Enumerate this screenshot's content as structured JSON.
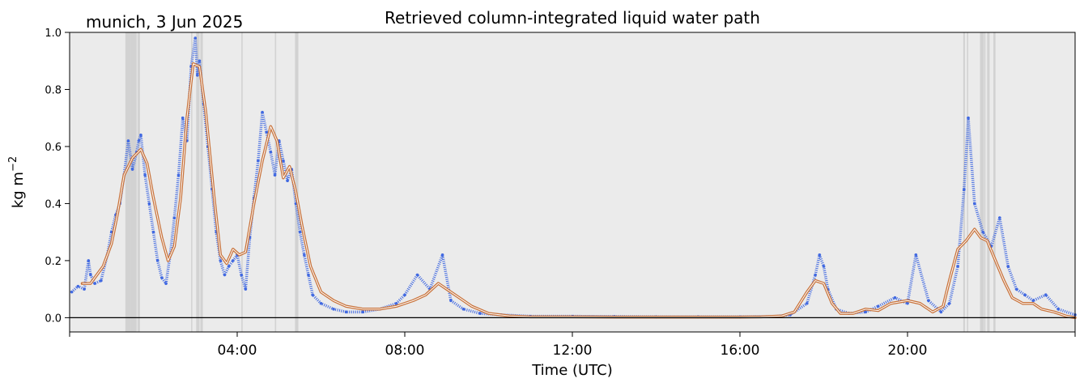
{
  "chart_data": {
    "type": "scatter",
    "title": "Retrieved column-integrated liquid water path",
    "location_label": "munich, 3 Jun 2025",
    "xlabel": "Time (UTC)",
    "ylabel": "kg m⁻²",
    "ylabel_base": "kg m",
    "ylabel_exp": "−2",
    "xlim": [
      0,
      24
    ],
    "ylim": [
      -0.05,
      1.0
    ],
    "xticks": [
      {
        "value": 4,
        "label": "04:00"
      },
      {
        "value": 8,
        "label": "08:00"
      },
      {
        "value": 12,
        "label": "12:00"
      },
      {
        "value": 16,
        "label": "16:00"
      },
      {
        "value": 20,
        "label": "20:00"
      }
    ],
    "yticks": [
      {
        "value": 0.0,
        "label": "0.0"
      },
      {
        "value": 0.2,
        "label": "0.2"
      },
      {
        "value": 0.4,
        "label": "0.4"
      },
      {
        "value": 0.6,
        "label": "0.6"
      },
      {
        "value": 0.8,
        "label": "0.8"
      },
      {
        "value": 1.0,
        "label": "1.0"
      }
    ],
    "colors": {
      "background": "#ebebeb",
      "raw": "#4169e1",
      "smoothed_outline": "#c8723a",
      "smoothed_center": "#ffffff",
      "flag_band": "#d2d2d2",
      "zero_line": "#000000"
    },
    "flag_bands": [
      [
        1.33,
        1.46
      ],
      [
        1.46,
        1.6
      ],
      [
        1.62,
        1.68
      ],
      [
        2.9,
        2.93
      ],
      [
        3.02,
        3.1
      ],
      [
        3.12,
        3.18
      ],
      [
        4.1,
        4.13
      ],
      [
        4.9,
        4.93
      ],
      [
        5.38,
        5.46
      ],
      [
        21.33,
        21.37
      ],
      [
        21.42,
        21.44
      ],
      [
        21.73,
        21.82
      ],
      [
        21.83,
        21.86
      ],
      [
        21.9,
        21.96
      ],
      [
        22.05,
        22.1
      ]
    ],
    "series": [
      {
        "kind": "smoothed",
        "x": [
          0.3,
          0.5,
          0.8,
          1.0,
          1.15,
          1.3,
          1.5,
          1.7,
          1.85,
          2.0,
          2.2,
          2.35,
          2.5,
          2.65,
          2.8,
          2.95,
          3.1,
          3.25,
          3.45,
          3.6,
          3.75,
          3.9,
          4.05,
          4.2,
          4.4,
          4.6,
          4.8,
          4.95,
          5.1,
          5.25,
          5.4,
          5.55,
          5.75,
          6.0,
          6.3,
          6.6,
          7.0,
          7.4,
          7.8,
          8.2,
          8.5,
          8.8,
          9.0,
          9.3,
          9.6,
          10.0,
          10.5,
          11.0,
          12.0,
          13.0,
          14.0,
          15.0,
          16.0,
          16.5,
          17.0,
          17.3,
          17.6,
          17.8,
          18.0,
          18.2,
          18.4,
          18.7,
          19.0,
          19.3,
          19.6,
          20.0,
          20.3,
          20.6,
          20.85,
          21.0,
          21.2,
          21.4,
          21.6,
          21.75,
          21.9,
          22.1,
          22.3,
          22.5,
          22.75,
          23.0,
          23.2,
          23.5,
          23.8,
          24.0
        ],
        "y": [
          0.12,
          0.12,
          0.18,
          0.26,
          0.37,
          0.5,
          0.56,
          0.59,
          0.54,
          0.42,
          0.28,
          0.2,
          0.25,
          0.42,
          0.7,
          0.89,
          0.88,
          0.72,
          0.42,
          0.22,
          0.19,
          0.24,
          0.22,
          0.23,
          0.4,
          0.55,
          0.67,
          0.62,
          0.49,
          0.53,
          0.44,
          0.32,
          0.18,
          0.09,
          0.06,
          0.04,
          0.03,
          0.03,
          0.04,
          0.06,
          0.08,
          0.12,
          0.1,
          0.07,
          0.04,
          0.015,
          0.006,
          0.003,
          0.003,
          0.002,
          0.002,
          0.002,
          0.002,
          0.003,
          0.006,
          0.02,
          0.09,
          0.13,
          0.12,
          0.05,
          0.015,
          0.015,
          0.03,
          0.025,
          0.05,
          0.06,
          0.05,
          0.02,
          0.04,
          0.13,
          0.24,
          0.27,
          0.31,
          0.28,
          0.27,
          0.2,
          0.13,
          0.07,
          0.05,
          0.05,
          0.03,
          0.02,
          0.005,
          0.0
        ]
      },
      {
        "kind": "raw",
        "x": [
          0.05,
          0.2,
          0.35,
          0.45,
          0.5,
          0.6,
          0.75,
          0.9,
          1.0,
          1.1,
          1.2,
          1.3,
          1.4,
          1.5,
          1.6,
          1.65,
          1.7,
          1.8,
          1.9,
          2.0,
          2.1,
          2.2,
          2.3,
          2.4,
          2.5,
          2.6,
          2.7,
          2.8,
          2.9,
          3.0,
          3.05,
          3.1,
          3.2,
          3.3,
          3.4,
          3.5,
          3.6,
          3.7,
          3.8,
          3.9,
          4.0,
          4.1,
          4.2,
          4.3,
          4.4,
          4.5,
          4.6,
          4.7,
          4.8,
          4.9,
          5.0,
          5.1,
          5.2,
          5.3,
          5.4,
          5.5,
          5.6,
          5.7,
          5.8,
          6.0,
          6.3,
          6.6,
          7.0,
          7.4,
          7.8,
          8.0,
          8.3,
          8.6,
          8.9,
          9.1,
          9.4,
          9.8,
          10.3,
          11.0,
          12.0,
          13.0,
          14.0,
          15.0,
          16.0,
          16.8,
          17.2,
          17.6,
          17.8,
          17.9,
          18.0,
          18.1,
          18.3,
          18.6,
          19.0,
          19.3,
          19.7,
          20.0,
          20.2,
          20.5,
          20.8,
          21.0,
          21.2,
          21.35,
          21.45,
          21.6,
          21.8,
          22.0,
          22.2,
          22.4,
          22.6,
          22.8,
          23.0,
          23.3,
          23.6,
          24.0
        ],
        "y": [
          0.09,
          0.11,
          0.1,
          0.2,
          0.15,
          0.12,
          0.13,
          0.22,
          0.3,
          0.36,
          0.4,
          0.5,
          0.62,
          0.52,
          0.58,
          0.62,
          0.64,
          0.5,
          0.4,
          0.3,
          0.2,
          0.14,
          0.12,
          0.22,
          0.35,
          0.5,
          0.7,
          0.62,
          0.88,
          0.98,
          0.85,
          0.9,
          0.75,
          0.6,
          0.45,
          0.3,
          0.2,
          0.15,
          0.18,
          0.2,
          0.22,
          0.15,
          0.1,
          0.28,
          0.42,
          0.55,
          0.72,
          0.65,
          0.58,
          0.5,
          0.62,
          0.55,
          0.48,
          0.52,
          0.4,
          0.3,
          0.22,
          0.15,
          0.08,
          0.05,
          0.03,
          0.02,
          0.02,
          0.03,
          0.05,
          0.08,
          0.15,
          0.1,
          0.22,
          0.06,
          0.03,
          0.015,
          0.01,
          0.005,
          0.005,
          0.004,
          0.003,
          0.003,
          0.003,
          0.004,
          0.01,
          0.05,
          0.15,
          0.22,
          0.18,
          0.1,
          0.03,
          0.015,
          0.02,
          0.04,
          0.07,
          0.05,
          0.22,
          0.06,
          0.02,
          0.05,
          0.18,
          0.45,
          0.7,
          0.4,
          0.3,
          0.25,
          0.35,
          0.18,
          0.1,
          0.08,
          0.06,
          0.08,
          0.03,
          0.01
        ]
      }
    ]
  }
}
